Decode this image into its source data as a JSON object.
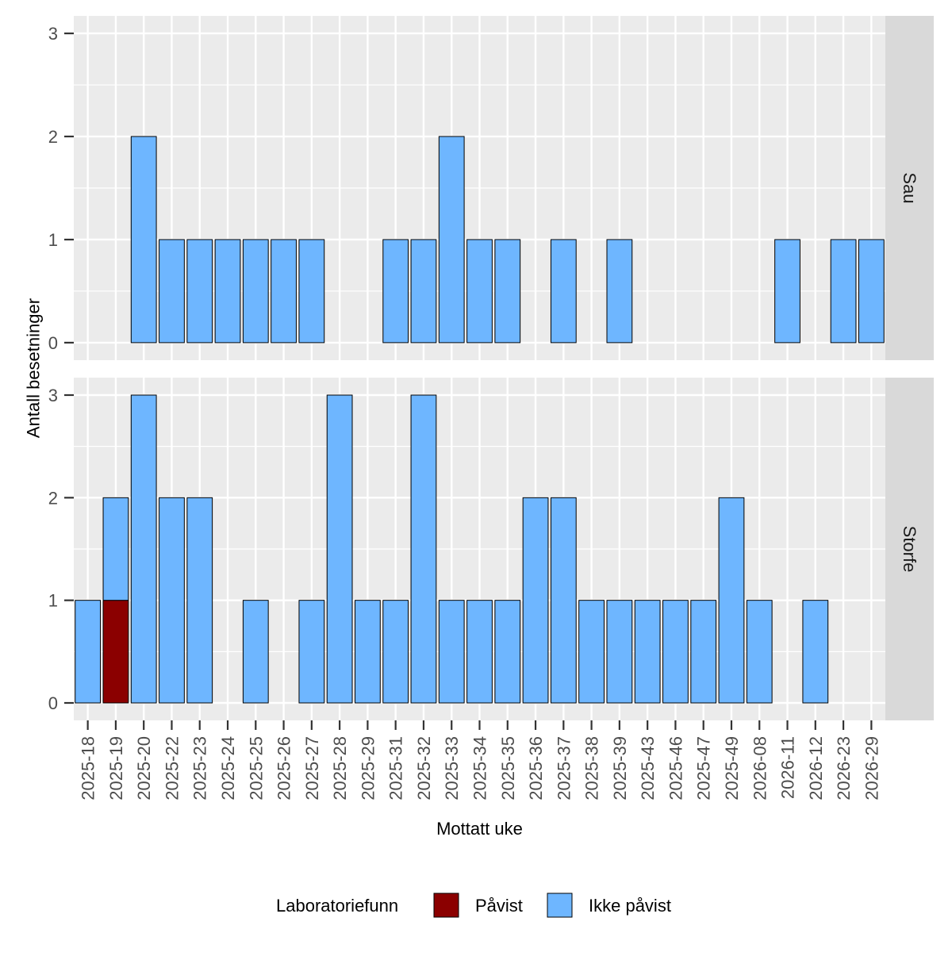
{
  "chart_data": {
    "type": "bar",
    "stacked": true,
    "faceted": true,
    "xlabel": "Mottatt uke",
    "ylabel": "Antall besetninger",
    "ylim": [
      0,
      3
    ],
    "yticks": [
      0,
      1,
      2,
      3
    ],
    "grid": true,
    "legend": {
      "title": "Laboratoriefunn",
      "position": "bottom"
    },
    "categories": [
      "2025-18",
      "2025-19",
      "2025-20",
      "2025-22",
      "2025-23",
      "2025-24",
      "2025-25",
      "2025-26",
      "2025-27",
      "2025-28",
      "2025-29",
      "2025-31",
      "2025-32",
      "2025-33",
      "2025-34",
      "2025-35",
      "2025-36",
      "2025-37",
      "2025-38",
      "2025-39",
      "2025-43",
      "2025-46",
      "2025-47",
      "2025-49",
      "2026-08",
      "2026-11",
      "2026-12",
      "2026-23",
      "2026-29"
    ],
    "series_colors": {
      "Påvist": "#8b0000",
      "Ikke påvist": "#6eb6ff"
    },
    "panels": [
      {
        "name": "Sau",
        "series": [
          {
            "name": "Påvist",
            "values": [
              0,
              0,
              0,
              0,
              0,
              0,
              0,
              0,
              0,
              0,
              0,
              0,
              0,
              0,
              0,
              0,
              0,
              0,
              0,
              0,
              0,
              0,
              0,
              0,
              0,
              0,
              0,
              0,
              0
            ]
          },
          {
            "name": "Ikke påvist",
            "values": [
              0,
              0,
              2,
              1,
              1,
              1,
              1,
              1,
              1,
              0,
              0,
              1,
              1,
              2,
              1,
              1,
              0,
              1,
              0,
              1,
              0,
              0,
              0,
              0,
              0,
              1,
              0,
              1,
              1
            ]
          }
        ]
      },
      {
        "name": "Storfe",
        "series": [
          {
            "name": "Påvist",
            "values": [
              0,
              1,
              0,
              0,
              0,
              0,
              0,
              0,
              0,
              0,
              0,
              0,
              0,
              0,
              0,
              0,
              0,
              0,
              0,
              0,
              0,
              0,
              0,
              0,
              0,
              0,
              0,
              0,
              0
            ]
          },
          {
            "name": "Ikke påvist",
            "values": [
              1,
              1,
              3,
              2,
              2,
              0,
              1,
              0,
              1,
              3,
              1,
              1,
              3,
              1,
              1,
              1,
              2,
              2,
              1,
              1,
              1,
              1,
              1,
              2,
              1,
              0,
              1,
              0,
              0
            ]
          }
        ]
      }
    ]
  }
}
